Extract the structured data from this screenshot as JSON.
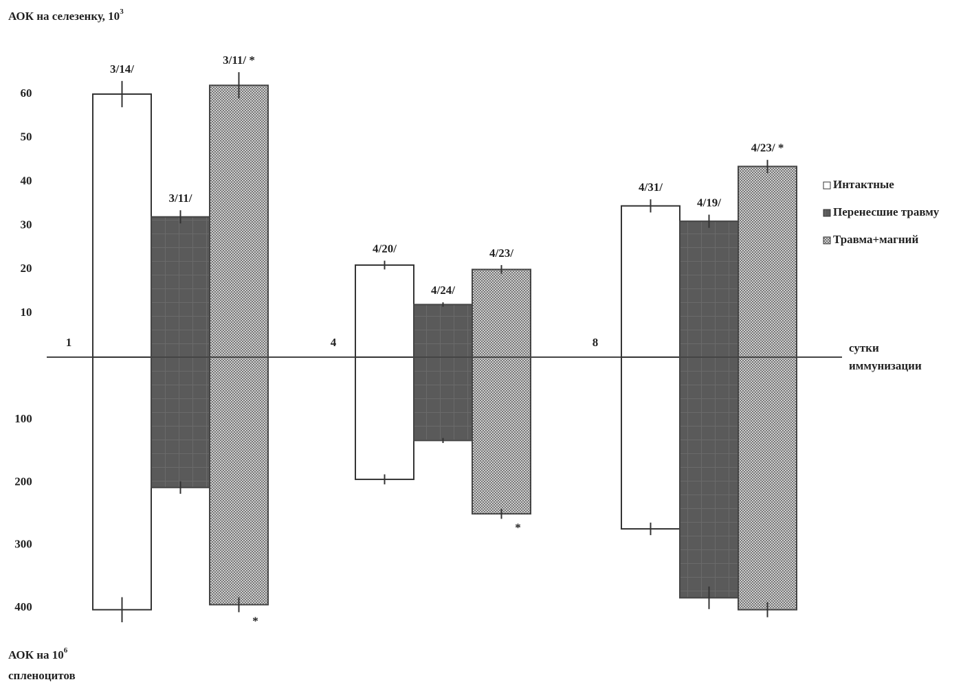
{
  "chart_data": {
    "type": "bidirectional_bar",
    "ylabel": "АОК на селезенку, 10",
    "ylabel_exp": "3",
    "y2label": "АОК на 10",
    "y2label_exp": "6",
    "y2label_line2": "спленоцитов",
    "xlabel": "сутки",
    "xlabel_line2": "иммунизации",
    "categories": [
      "1",
      "4",
      "8"
    ],
    "ylim": [
      0,
      60
    ],
    "yticks": [
      10,
      20,
      30,
      40,
      50,
      60
    ],
    "y2lim": [
      0,
      400
    ],
    "y2ticks": [
      100,
      200,
      300,
      400
    ],
    "legend": "right",
    "series": [
      {
        "name": "Интактные",
        "color": "#ffffff",
        "pattern": "none",
        "values": [
          60,
          21,
          34.5
        ],
        "errors": [
          3,
          1,
          1.5
        ],
        "lower_values": [
          403,
          195,
          274
        ],
        "lower_errors": [
          20,
          8,
          10
        ],
        "labels": [
          "3/14/",
          "4/20/",
          "4/31/"
        ],
        "lower_notes": [
          null,
          null,
          null
        ]
      },
      {
        "name": "Перенесшие травму",
        "color": "#5a5a5a",
        "pattern": "grid",
        "values": [
          32,
          12,
          31
        ],
        "errors": [
          1.5,
          0.5,
          1.5
        ],
        "lower_values": [
          208,
          133,
          384
        ],
        "lower_errors": [
          10,
          4,
          18
        ],
        "labels": [
          "3/11/",
          "4/24/",
          "4/19/"
        ],
        "lower_notes": [
          null,
          null,
          null
        ]
      },
      {
        "name": "Травма+магний",
        "color": "#a8a8a8",
        "pattern": "checker",
        "values": [
          62,
          20,
          43.5
        ],
        "errors": [
          3,
          1,
          1.5
        ],
        "lower_values": [
          395,
          250,
          403
        ],
        "lower_errors": [
          12,
          8,
          12
        ],
        "labels": [
          "3/11/  *",
          "4/23/",
          "4/23/  *"
        ],
        "lower_notes": [
          "*",
          "*",
          null
        ]
      }
    ]
  }
}
